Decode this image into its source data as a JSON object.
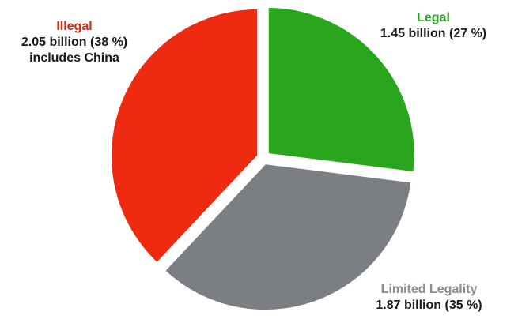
{
  "chart_data": {
    "type": "pie",
    "title": "",
    "slices": [
      {
        "key": "legal",
        "name": "Legal",
        "value_text": "1.45 billion (27 %)",
        "value": 1.45,
        "percent": 27,
        "color": "#2aa51e"
      },
      {
        "key": "limited",
        "name": "Limited Legality",
        "value_text": "1.87 billion (35 %)",
        "value": 1.87,
        "percent": 35,
        "color": "#7b7e83"
      },
      {
        "key": "illegal",
        "name": "Illegal",
        "value_text": "2.05 billion (38 %)",
        "note": "includes China",
        "value": 2.05,
        "percent": 38,
        "color": "#ee2a10"
      }
    ],
    "legend": "none",
    "start_angle": "12 o'clock, clockwise"
  },
  "labels": {
    "illegal": {
      "name": "Illegal",
      "value": "2.05 billion (38 %)",
      "note": "includes China",
      "color": "#d92a12"
    },
    "legal": {
      "name": "Legal",
      "value": "1.45 billion (27 %)",
      "color": "#2fa024"
    },
    "limited": {
      "name": "Limited Legality",
      "value": "1.87 billion (35 %)",
      "color": "#8a8d92"
    }
  }
}
